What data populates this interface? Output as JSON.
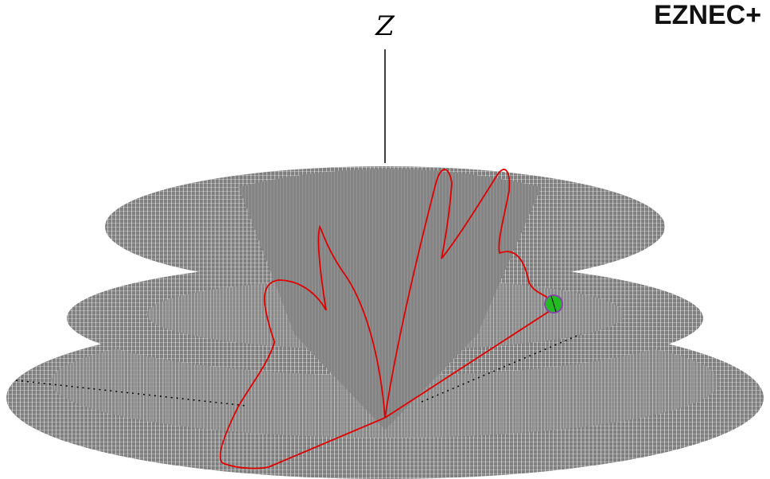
{
  "labels": {
    "axis": "Z",
    "app": "EZNEC+"
  }
}
